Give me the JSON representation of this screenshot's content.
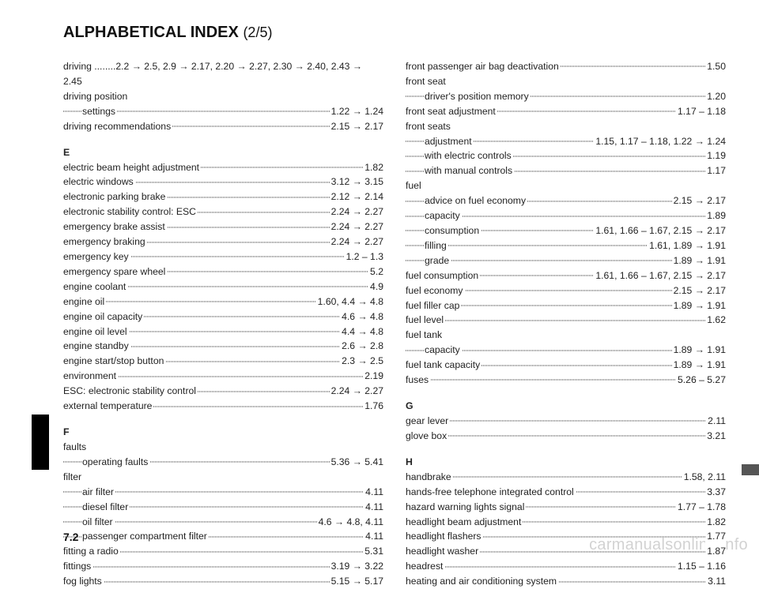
{
  "title_main": "ALPHABETICAL INDEX",
  "title_part": "(2/5)",
  "page_number": "7.2",
  "watermark": "carmanualsonline.info",
  "left": [
    {
      "label": "driving ........2.2 → 2.5, 2.9 → 2.17, 2.20 → 2.27, 2.30 → 2.40, 2.43 → 2.45",
      "pageref": "",
      "indent": false,
      "nodots": true,
      "wrap": true
    },
    {
      "label": "driving position",
      "pageref": "",
      "indent": false,
      "nodots": true
    },
    {
      "label": "settings",
      "pageref": "1.22 → 1.24",
      "indent": true
    },
    {
      "label": "driving recommendations",
      "pageref": "2.15 → 2.17",
      "indent": false
    },
    {
      "section": "E"
    },
    {
      "label": "electric beam height adjustment",
      "pageref": "1.82",
      "indent": false
    },
    {
      "label": "electric windows",
      "pageref": "3.12 → 3.15",
      "indent": false
    },
    {
      "label": "electronic parking brake",
      "pageref": "2.12 → 2.14",
      "indent": false
    },
    {
      "label": "electronic stability control: ESC",
      "pageref": "2.24 → 2.27",
      "indent": false
    },
    {
      "label": "emergency brake assist",
      "pageref": "2.24 → 2.27",
      "indent": false
    },
    {
      "label": "emergency braking",
      "pageref": "2.24 → 2.27",
      "indent": false
    },
    {
      "label": "emergency key",
      "pageref": "1.2 – 1.3",
      "indent": false
    },
    {
      "label": "emergency spare wheel",
      "pageref": "5.2",
      "indent": false
    },
    {
      "label": "engine coolant",
      "pageref": "4.9",
      "indent": false
    },
    {
      "label": "engine oil",
      "pageref": "1.60, 4.4 → 4.8",
      "indent": false
    },
    {
      "label": "engine oil capacity",
      "pageref": "4.6 → 4.8",
      "indent": false
    },
    {
      "label": "engine oil level",
      "pageref": "4.4 → 4.8",
      "indent": false
    },
    {
      "label": "engine standby",
      "pageref": "2.6 → 2.8",
      "indent": false
    },
    {
      "label": "engine start/stop button",
      "pageref": "2.3 → 2.5",
      "indent": false
    },
    {
      "label": "environment",
      "pageref": "2.19",
      "indent": false
    },
    {
      "label": "ESC: electronic stability control",
      "pageref": "2.24 → 2.27",
      "indent": false
    },
    {
      "label": "external temperature",
      "pageref": "1.76",
      "indent": false
    },
    {
      "section": "F"
    },
    {
      "label": "faults",
      "pageref": "",
      "indent": false,
      "nodots": true
    },
    {
      "label": "operating faults",
      "pageref": "5.36 → 5.41",
      "indent": true
    },
    {
      "label": "filter",
      "pageref": "",
      "indent": false,
      "nodots": true
    },
    {
      "label": "air filter",
      "pageref": "4.11",
      "indent": true
    },
    {
      "label": "diesel filter",
      "pageref": "4.11",
      "indent": true
    },
    {
      "label": "oil filter",
      "pageref": "4.6 → 4.8, 4.11",
      "indent": true
    },
    {
      "label": "passenger compartment filter",
      "pageref": "4.11",
      "indent": true
    },
    {
      "label": "fitting a radio",
      "pageref": "5.31",
      "indent": false
    },
    {
      "label": "fittings",
      "pageref": "3.19 → 3.22",
      "indent": false
    },
    {
      "label": "fog lights",
      "pageref": "5.15 → 5.17",
      "indent": false
    }
  ],
  "right": [
    {
      "label": "front passenger air bag deactivation",
      "pageref": "1.50",
      "indent": false
    },
    {
      "label": "front seat",
      "pageref": "",
      "indent": false,
      "nodots": true
    },
    {
      "label": "driver's position memory",
      "pageref": "1.20",
      "indent": true
    },
    {
      "label": "front seat adjustment",
      "pageref": "1.17 – 1.18",
      "indent": false
    },
    {
      "label": "front seats",
      "pageref": "",
      "indent": false,
      "nodots": true
    },
    {
      "label": "adjustment",
      "pageref": "1.15, 1.17 – 1.18, 1.22 → 1.24",
      "indent": true
    },
    {
      "label": "with electric controls",
      "pageref": "1.19",
      "indent": true
    },
    {
      "label": "with manual controls",
      "pageref": "1.17",
      "indent": true
    },
    {
      "label": "fuel",
      "pageref": "",
      "indent": false,
      "nodots": true
    },
    {
      "label": "advice on fuel economy",
      "pageref": "2.15 → 2.17",
      "indent": true
    },
    {
      "label": "capacity",
      "pageref": "1.89",
      "indent": true
    },
    {
      "label": "consumption",
      "pageref": "1.61, 1.66 – 1.67, 2.15 → 2.17",
      "indent": true
    },
    {
      "label": "filling",
      "pageref": "1.61, 1.89 → 1.91",
      "indent": true
    },
    {
      "label": "grade",
      "pageref": "1.89 → 1.91",
      "indent": true
    },
    {
      "label": "fuel consumption",
      "pageref": "1.61, 1.66 – 1.67, 2.15 → 2.17",
      "indent": false
    },
    {
      "label": "fuel economy",
      "pageref": "2.15 → 2.17",
      "indent": false
    },
    {
      "label": "fuel filler cap",
      "pageref": "1.89 → 1.91",
      "indent": false
    },
    {
      "label": "fuel level",
      "pageref": "1.62",
      "indent": false
    },
    {
      "label": "fuel tank",
      "pageref": "",
      "indent": false,
      "nodots": true
    },
    {
      "label": "capacity",
      "pageref": "1.89 → 1.91",
      "indent": true
    },
    {
      "label": "fuel tank capacity",
      "pageref": "1.89 → 1.91",
      "indent": false
    },
    {
      "label": "fuses",
      "pageref": "5.26 – 5.27",
      "indent": false
    },
    {
      "section": "G"
    },
    {
      "label": "gear lever",
      "pageref": "2.11",
      "indent": false
    },
    {
      "label": "glove box",
      "pageref": "3.21",
      "indent": false
    },
    {
      "section": "H"
    },
    {
      "label": "handbrake",
      "pageref": "1.58, 2.11",
      "indent": false
    },
    {
      "label": "hands-free telephone integrated control",
      "pageref": "3.37",
      "indent": false
    },
    {
      "label": "hazard warning lights signal",
      "pageref": "1.77 – 1.78",
      "indent": false
    },
    {
      "label": "headlight beam adjustment",
      "pageref": "1.82",
      "indent": false
    },
    {
      "label": "headlight flashers",
      "pageref": "1.77",
      "indent": false
    },
    {
      "label": "headlight washer",
      "pageref": "1.87",
      "indent": false
    },
    {
      "label": "headrest",
      "pageref": "1.15 – 1.16",
      "indent": false
    },
    {
      "label": "heating and air conditioning system",
      "pageref": "3.11",
      "indent": false
    }
  ]
}
